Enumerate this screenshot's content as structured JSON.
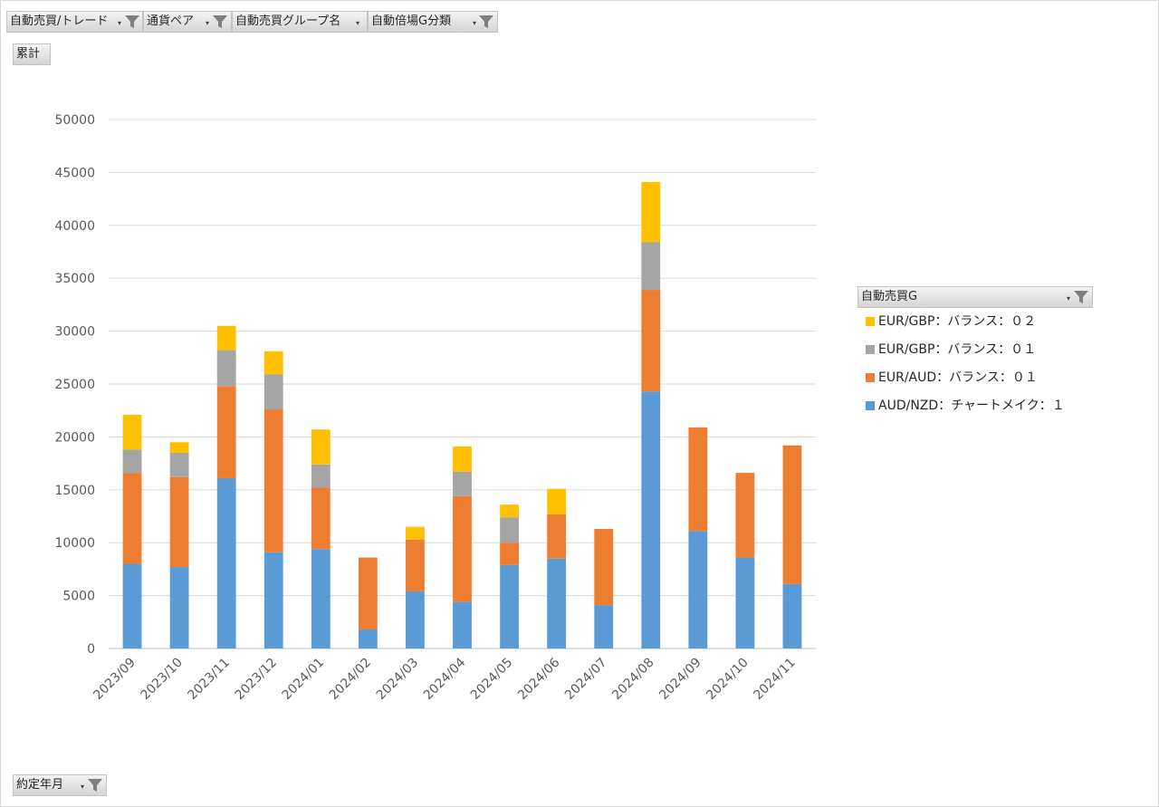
{
  "filters": {
    "top": [
      {
        "label": "自動売買/トレード",
        "filter_icon": "filter-icon",
        "active": true
      },
      {
        "label": "通貨ペア",
        "filter_icon": "filter-icon",
        "active": true
      },
      {
        "label": "自動売買グループ名",
        "filter_icon": "dropdown-icon",
        "active": false
      },
      {
        "label": "自動倍場G分類",
        "filter_icon": "filter-icon",
        "active": true
      }
    ],
    "value_field": "累計",
    "axis_field": "約定年月",
    "legend_field": "自動売買G"
  },
  "colors": {
    "AUD/NZD：チャートメイク：１": "#5b9bd5",
    "EUR/AUD：バランス：０１": "#ed7d31",
    "EUR/GBP：バランス：０１": "#a5a5a5",
    "EUR/GBP：バランス：０２": "#ffc000"
  },
  "chart_data": {
    "type": "bar",
    "stacked": true,
    "categories": [
      "2023/09",
      "2023/10",
      "2023/11",
      "2023/12",
      "2024/01",
      "2024/02",
      "2024/03",
      "2024/04",
      "2024/05",
      "2024/06",
      "2024/07",
      "2024/08",
      "2024/09",
      "2024/10",
      "2024/11"
    ],
    "series": [
      {
        "name": "AUD/NZD：チャートメイク：１",
        "values": [
          8000,
          7700,
          16100,
          9100,
          9400,
          1800,
          5400,
          4400,
          7900,
          8500,
          4100,
          24300,
          11100,
          8600,
          6100
        ]
      },
      {
        "name": "EUR/AUD：バランス：０１",
        "values": [
          8600,
          8500,
          8700,
          13500,
          5800,
          6800,
          4900,
          10000,
          2100,
          4200,
          7200,
          9600,
          9800,
          8000,
          13100
        ]
      },
      {
        "name": "EUR/GBP：バランス：０１",
        "values": [
          2200,
          2300,
          3400,
          3300,
          2200,
          0,
          0,
          2300,
          2400,
          0,
          0,
          4500,
          0,
          0,
          0
        ]
      },
      {
        "name": "EUR/GBP：バランス：０２",
        "values": [
          3300,
          1000,
          2300,
          2200,
          3300,
          0,
          1200,
          2400,
          1200,
          2400,
          0,
          5700,
          0,
          0,
          0
        ]
      }
    ],
    "title": "",
    "xlabel": "",
    "ylabel": "",
    "ylim": [
      0,
      50000
    ],
    "yticks": [
      0,
      5000,
      10000,
      15000,
      20000,
      25000,
      30000,
      35000,
      40000,
      45000,
      50000
    ],
    "grid": true,
    "legend_position": "right",
    "legend_order": [
      "EUR/GBP：バランス：０２",
      "EUR/GBP：バランス：０１",
      "EUR/AUD：バランス：０１",
      "AUD/NZD：チャートメイク：１"
    ]
  }
}
